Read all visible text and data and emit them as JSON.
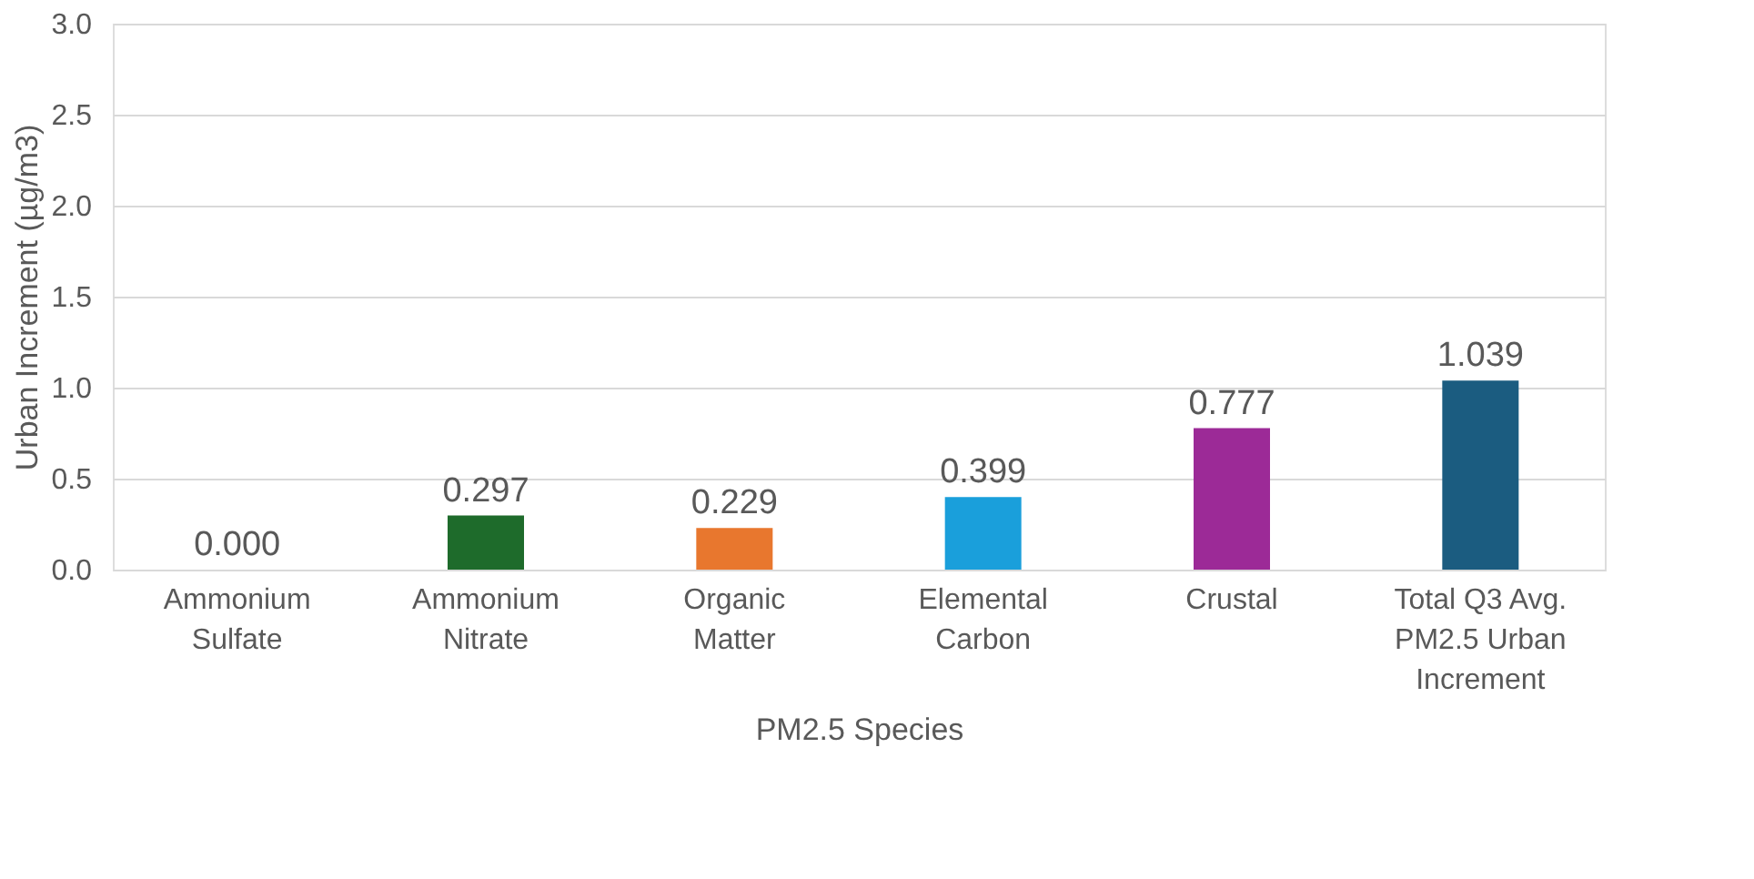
{
  "chart_data": {
    "type": "bar",
    "xlabel": "PM2.5 Species",
    "ylabel": "Urban Increment (µg/m3)",
    "categories": [
      "Ammonium Sulfate",
      "Ammonium Nitrate",
      "Organic Matter",
      "Elemental Carbon",
      "Crustal",
      "Total Q3 Avg. PM2.5 Urban Increment"
    ],
    "values": [
      0.0,
      0.297,
      0.229,
      0.399,
      0.777,
      1.039
    ],
    "value_labels": [
      "0.000",
      "0.297",
      "0.229",
      "0.399",
      "0.777",
      "1.039"
    ],
    "colors": [
      "#4472c4",
      "#1e6b2b",
      "#e8772e",
      "#1a9fdb",
      "#9c2a97",
      "#1b5c80"
    ],
    "ylim": [
      0,
      3
    ],
    "yticks": [
      {
        "value": 0,
        "label": "0.0"
      },
      {
        "value": 0.5,
        "label": "0.5"
      },
      {
        "value": 1,
        "label": "1.0"
      },
      {
        "value": 1.5,
        "label": "1.5"
      },
      {
        "value": 2,
        "label": "2.0"
      },
      {
        "value": 2.5,
        "label": "2.5"
      },
      {
        "value": 3,
        "label": "3.0"
      }
    ],
    "grid": "y"
  }
}
